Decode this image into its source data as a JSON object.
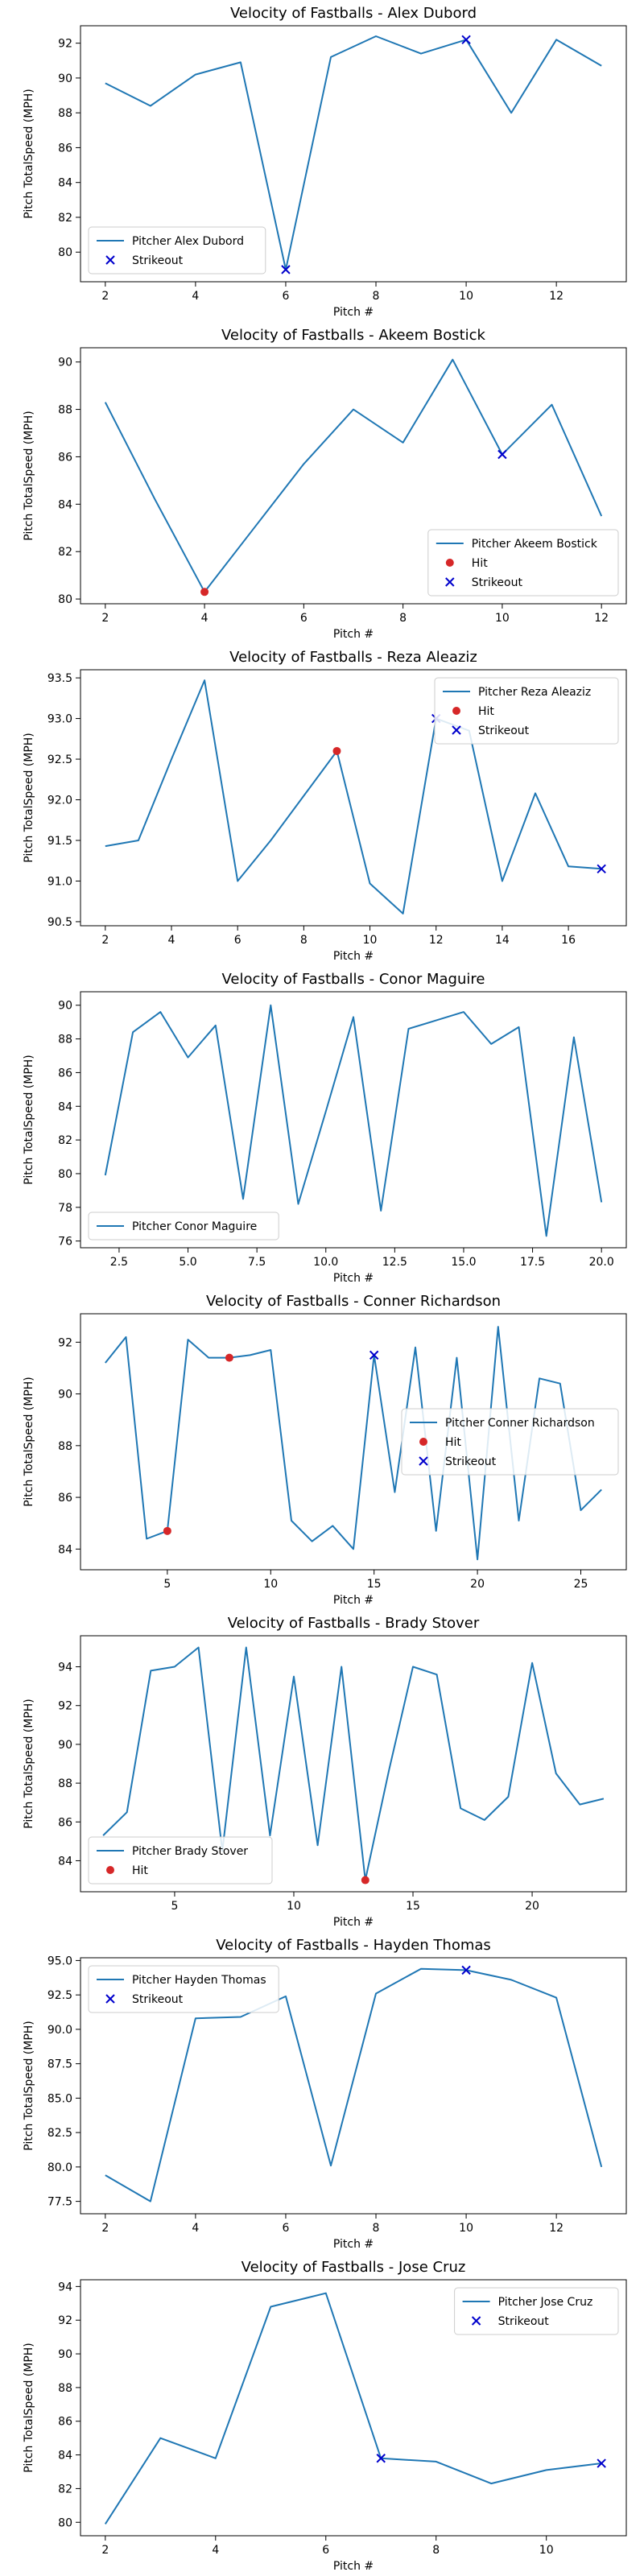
{
  "colors": {
    "line": "#1f77b4",
    "hit": "#d62728",
    "strikeout": "#0000cc",
    "axis": "#000000",
    "background": "#ffffff"
  },
  "chart_data": [
    {
      "type": "line",
      "title": "Velocity of Fastballs - Alex Dubord",
      "xlabel": "Pitch #",
      "ylabel": "Pitch TotalSpeed (MPH)",
      "xlim": [
        1.45,
        13.55
      ],
      "ylim": [
        78.3,
        93.0
      ],
      "xticks": [
        2,
        4,
        6,
        8,
        10,
        12
      ],
      "yticks": [
        80,
        82,
        84,
        86,
        88,
        90,
        92
      ],
      "legend_loc": "lower left",
      "series": [
        {
          "name": "Pitcher Alex Dubord",
          "x": [
            2,
            3,
            4,
            5,
            6,
            7,
            8,
            9,
            10,
            11,
            12,
            13
          ],
          "y": [
            89.7,
            88.4,
            90.2,
            90.9,
            79.0,
            91.2,
            92.4,
            91.4,
            92.2,
            88.0,
            92.2,
            90.7
          ]
        }
      ],
      "hits": [],
      "strikeouts": [
        [
          6,
          79.0
        ],
        [
          10,
          92.2
        ]
      ],
      "legend": [
        "Pitcher Alex Dubord",
        "Strikeout"
      ]
    },
    {
      "type": "line",
      "title": "Velocity of Fastballs - Akeem Bostick",
      "xlabel": "Pitch #",
      "ylabel": "Pitch TotalSpeed (MPH)",
      "xlim": [
        1.5,
        12.5
      ],
      "ylim": [
        79.8,
        90.6
      ],
      "xticks": [
        2,
        4,
        6,
        8,
        10,
        12
      ],
      "yticks": [
        80,
        82,
        84,
        86,
        88,
        90
      ],
      "legend_loc": "lower right",
      "series": [
        {
          "name": "Pitcher Akeem Bostick",
          "x": [
            2,
            3,
            4,
            5,
            6,
            7,
            8,
            9,
            10,
            11,
            12
          ],
          "y": [
            88.3,
            84.2,
            80.3,
            83.0,
            85.7,
            88.0,
            86.6,
            90.1,
            86.1,
            88.2,
            83.5
          ]
        }
      ],
      "hits": [
        [
          4,
          80.3
        ]
      ],
      "strikeouts": [
        [
          10,
          86.1
        ]
      ],
      "legend": [
        "Pitcher Akeem Bostick",
        "Hit",
        "Strikeout"
      ]
    },
    {
      "type": "line",
      "title": "Velocity of Fastballs - Reza Aleaziz",
      "xlabel": "Pitch #",
      "ylabel": "Pitch TotalSpeed (MPH)",
      "xlim": [
        1.25,
        17.75
      ],
      "ylim": [
        90.45,
        93.6
      ],
      "xticks": [
        2,
        4,
        6,
        8,
        10,
        12,
        14,
        16
      ],
      "yticks": [
        90.5,
        91.0,
        91.5,
        92.0,
        92.5,
        93.0,
        93.5
      ],
      "ytick_format": 1,
      "legend_loc": "upper right",
      "series": [
        {
          "name": "Pitcher Reza Aleaziz",
          "x": [
            2,
            3,
            4,
            5,
            6,
            7,
            8,
            9,
            10,
            11,
            12,
            13,
            14,
            15,
            16,
            17
          ],
          "y": [
            91.43,
            91.5,
            92.5,
            93.47,
            91.0,
            91.5,
            92.05,
            92.6,
            90.97,
            90.6,
            93.0,
            92.85,
            91.0,
            92.08,
            91.18,
            91.15
          ]
        }
      ],
      "hits": [
        [
          9,
          92.6
        ]
      ],
      "strikeouts": [
        [
          12,
          93.0
        ],
        [
          17,
          91.15
        ]
      ],
      "legend": [
        "Pitcher Reza Aleaziz",
        "Hit",
        "Strikeout"
      ]
    },
    {
      "type": "line",
      "title": "Velocity of Fastballs - Conor Maguire",
      "xlabel": "Pitch #",
      "ylabel": "Pitch TotalSpeed (MPH)",
      "xlim": [
        1.1,
        20.9
      ],
      "ylim": [
        75.6,
        90.8
      ],
      "xticks": [
        2.5,
        5.0,
        7.5,
        10.0,
        12.5,
        15.0,
        17.5,
        20.0
      ],
      "xtick_format": 1,
      "yticks": [
        76,
        78,
        80,
        82,
        84,
        86,
        88,
        90
      ],
      "legend_loc": "lower left",
      "series": [
        {
          "name": "Pitcher Conor Maguire",
          "x": [
            2,
            3,
            4,
            5,
            6,
            7,
            8,
            9,
            10,
            11,
            12,
            13,
            14,
            15,
            16,
            17,
            18,
            19,
            20
          ],
          "y": [
            79.9,
            88.4,
            89.6,
            86.9,
            88.8,
            78.5,
            90.0,
            78.2,
            83.7,
            89.3,
            77.8,
            88.6,
            89.1,
            89.6,
            87.7,
            88.7,
            76.3,
            88.1,
            78.3
          ]
        }
      ],
      "hits": [],
      "strikeouts": [],
      "legend": [
        "Pitcher Conor Maguire"
      ]
    },
    {
      "type": "line",
      "title": "Velocity of Fastballs - Conner Richardson",
      "xlabel": "Pitch #",
      "ylabel": "Pitch TotalSpeed (MPH)",
      "xlim": [
        0.8,
        27.2
      ],
      "ylim": [
        83.2,
        93.1
      ],
      "xticks": [
        5,
        10,
        15,
        20,
        25
      ],
      "yticks": [
        84,
        86,
        88,
        90,
        92
      ],
      "legend_loc": "center right",
      "series": [
        {
          "name": "Pitcher Conner Richardson",
          "x": [
            2,
            3,
            4,
            5,
            6,
            7,
            8,
            9,
            10,
            11,
            12,
            13,
            14,
            15,
            16,
            17,
            18,
            19,
            20,
            21,
            22,
            23,
            24,
            25,
            26
          ],
          "y": [
            91.2,
            92.2,
            84.4,
            84.7,
            92.1,
            91.4,
            91.4,
            91.5,
            91.7,
            85.1,
            84.3,
            84.9,
            84.0,
            91.5,
            86.2,
            91.8,
            84.7,
            91.4,
            83.6,
            92.6,
            85.1,
            90.6,
            90.4,
            85.5,
            86.3
          ]
        }
      ],
      "hits": [
        [
          5,
          84.7
        ],
        [
          8,
          91.4
        ]
      ],
      "strikeouts": [
        [
          15,
          91.5
        ]
      ],
      "legend": [
        "Pitcher Conner Richardson",
        "Hit",
        "Strikeout"
      ]
    },
    {
      "type": "line",
      "title": "Velocity of Fastballs - Brady Stover",
      "xlabel": "Pitch #",
      "ylabel": "Pitch TotalSpeed (MPH)",
      "xlim": [
        1.05,
        23.95
      ],
      "ylim": [
        82.4,
        95.6
      ],
      "xticks": [
        5,
        10,
        15,
        20
      ],
      "yticks": [
        84,
        86,
        88,
        90,
        92,
        94
      ],
      "legend_loc": "lower left",
      "series": [
        {
          "name": "Pitcher Brady Stover",
          "x": [
            2,
            3,
            4,
            5,
            6,
            7,
            8,
            9,
            10,
            11,
            12,
            13,
            14,
            15,
            16,
            17,
            18,
            19,
            20,
            21,
            22,
            23
          ],
          "y": [
            85.3,
            86.5,
            93.8,
            94.0,
            95.0,
            84.5,
            95.0,
            85.3,
            93.5,
            84.8,
            94.0,
            83.0,
            88.7,
            94.0,
            93.6,
            86.7,
            86.1,
            87.3,
            94.2,
            88.5,
            86.9,
            87.2
          ]
        }
      ],
      "hits": [
        [
          13,
          83.0
        ]
      ],
      "strikeouts": [],
      "legend": [
        "Pitcher Brady Stover",
        "Hit"
      ]
    },
    {
      "type": "line",
      "title": "Velocity of Fastballs - Hayden Thomas",
      "xlabel": "Pitch #",
      "ylabel": "Pitch TotalSpeed (MPH)",
      "xlim": [
        1.45,
        13.55
      ],
      "ylim": [
        76.6,
        95.2
      ],
      "xticks": [
        2,
        4,
        6,
        8,
        10,
        12
      ],
      "yticks": [
        77.5,
        80.0,
        82.5,
        85.0,
        87.5,
        90.0,
        92.5,
        95.0
      ],
      "ytick_format": 1,
      "legend_loc": "upper left",
      "series": [
        {
          "name": "Pitcher Hayden Thomas",
          "x": [
            2,
            3,
            4,
            5,
            6,
            7,
            8,
            9,
            10,
            11,
            12,
            13
          ],
          "y": [
            79.4,
            77.5,
            90.8,
            90.9,
            92.4,
            80.1,
            92.6,
            94.4,
            94.3,
            93.6,
            92.3,
            80.0
          ]
        }
      ],
      "hits": [],
      "strikeouts": [
        [
          10,
          94.3
        ]
      ],
      "legend": [
        "Pitcher Hayden Thomas",
        "Strikeout"
      ]
    },
    {
      "type": "line",
      "title": "Velocity of Fastballs - Jose Cruz",
      "xlabel": "Pitch #",
      "ylabel": "Pitch TotalSpeed (MPH)",
      "xlim": [
        1.55,
        11.45
      ],
      "ylim": [
        79.2,
        94.4
      ],
      "xticks": [
        2,
        4,
        6,
        8,
        10
      ],
      "yticks": [
        80,
        82,
        84,
        86,
        88,
        90,
        92,
        94
      ],
      "legend_loc": "upper right",
      "series": [
        {
          "name": "Pitcher Jose Cruz",
          "x": [
            2,
            3,
            4,
            5,
            6,
            7,
            8,
            9,
            10,
            11
          ],
          "y": [
            79.9,
            85.0,
            83.8,
            92.8,
            93.6,
            83.8,
            83.6,
            82.3,
            83.1,
            83.5
          ]
        }
      ],
      "hits": [],
      "strikeouts": [
        [
          7,
          83.8
        ],
        [
          11,
          83.5
        ]
      ],
      "legend": [
        "Pitcher Jose Cruz",
        "Strikeout"
      ]
    }
  ]
}
